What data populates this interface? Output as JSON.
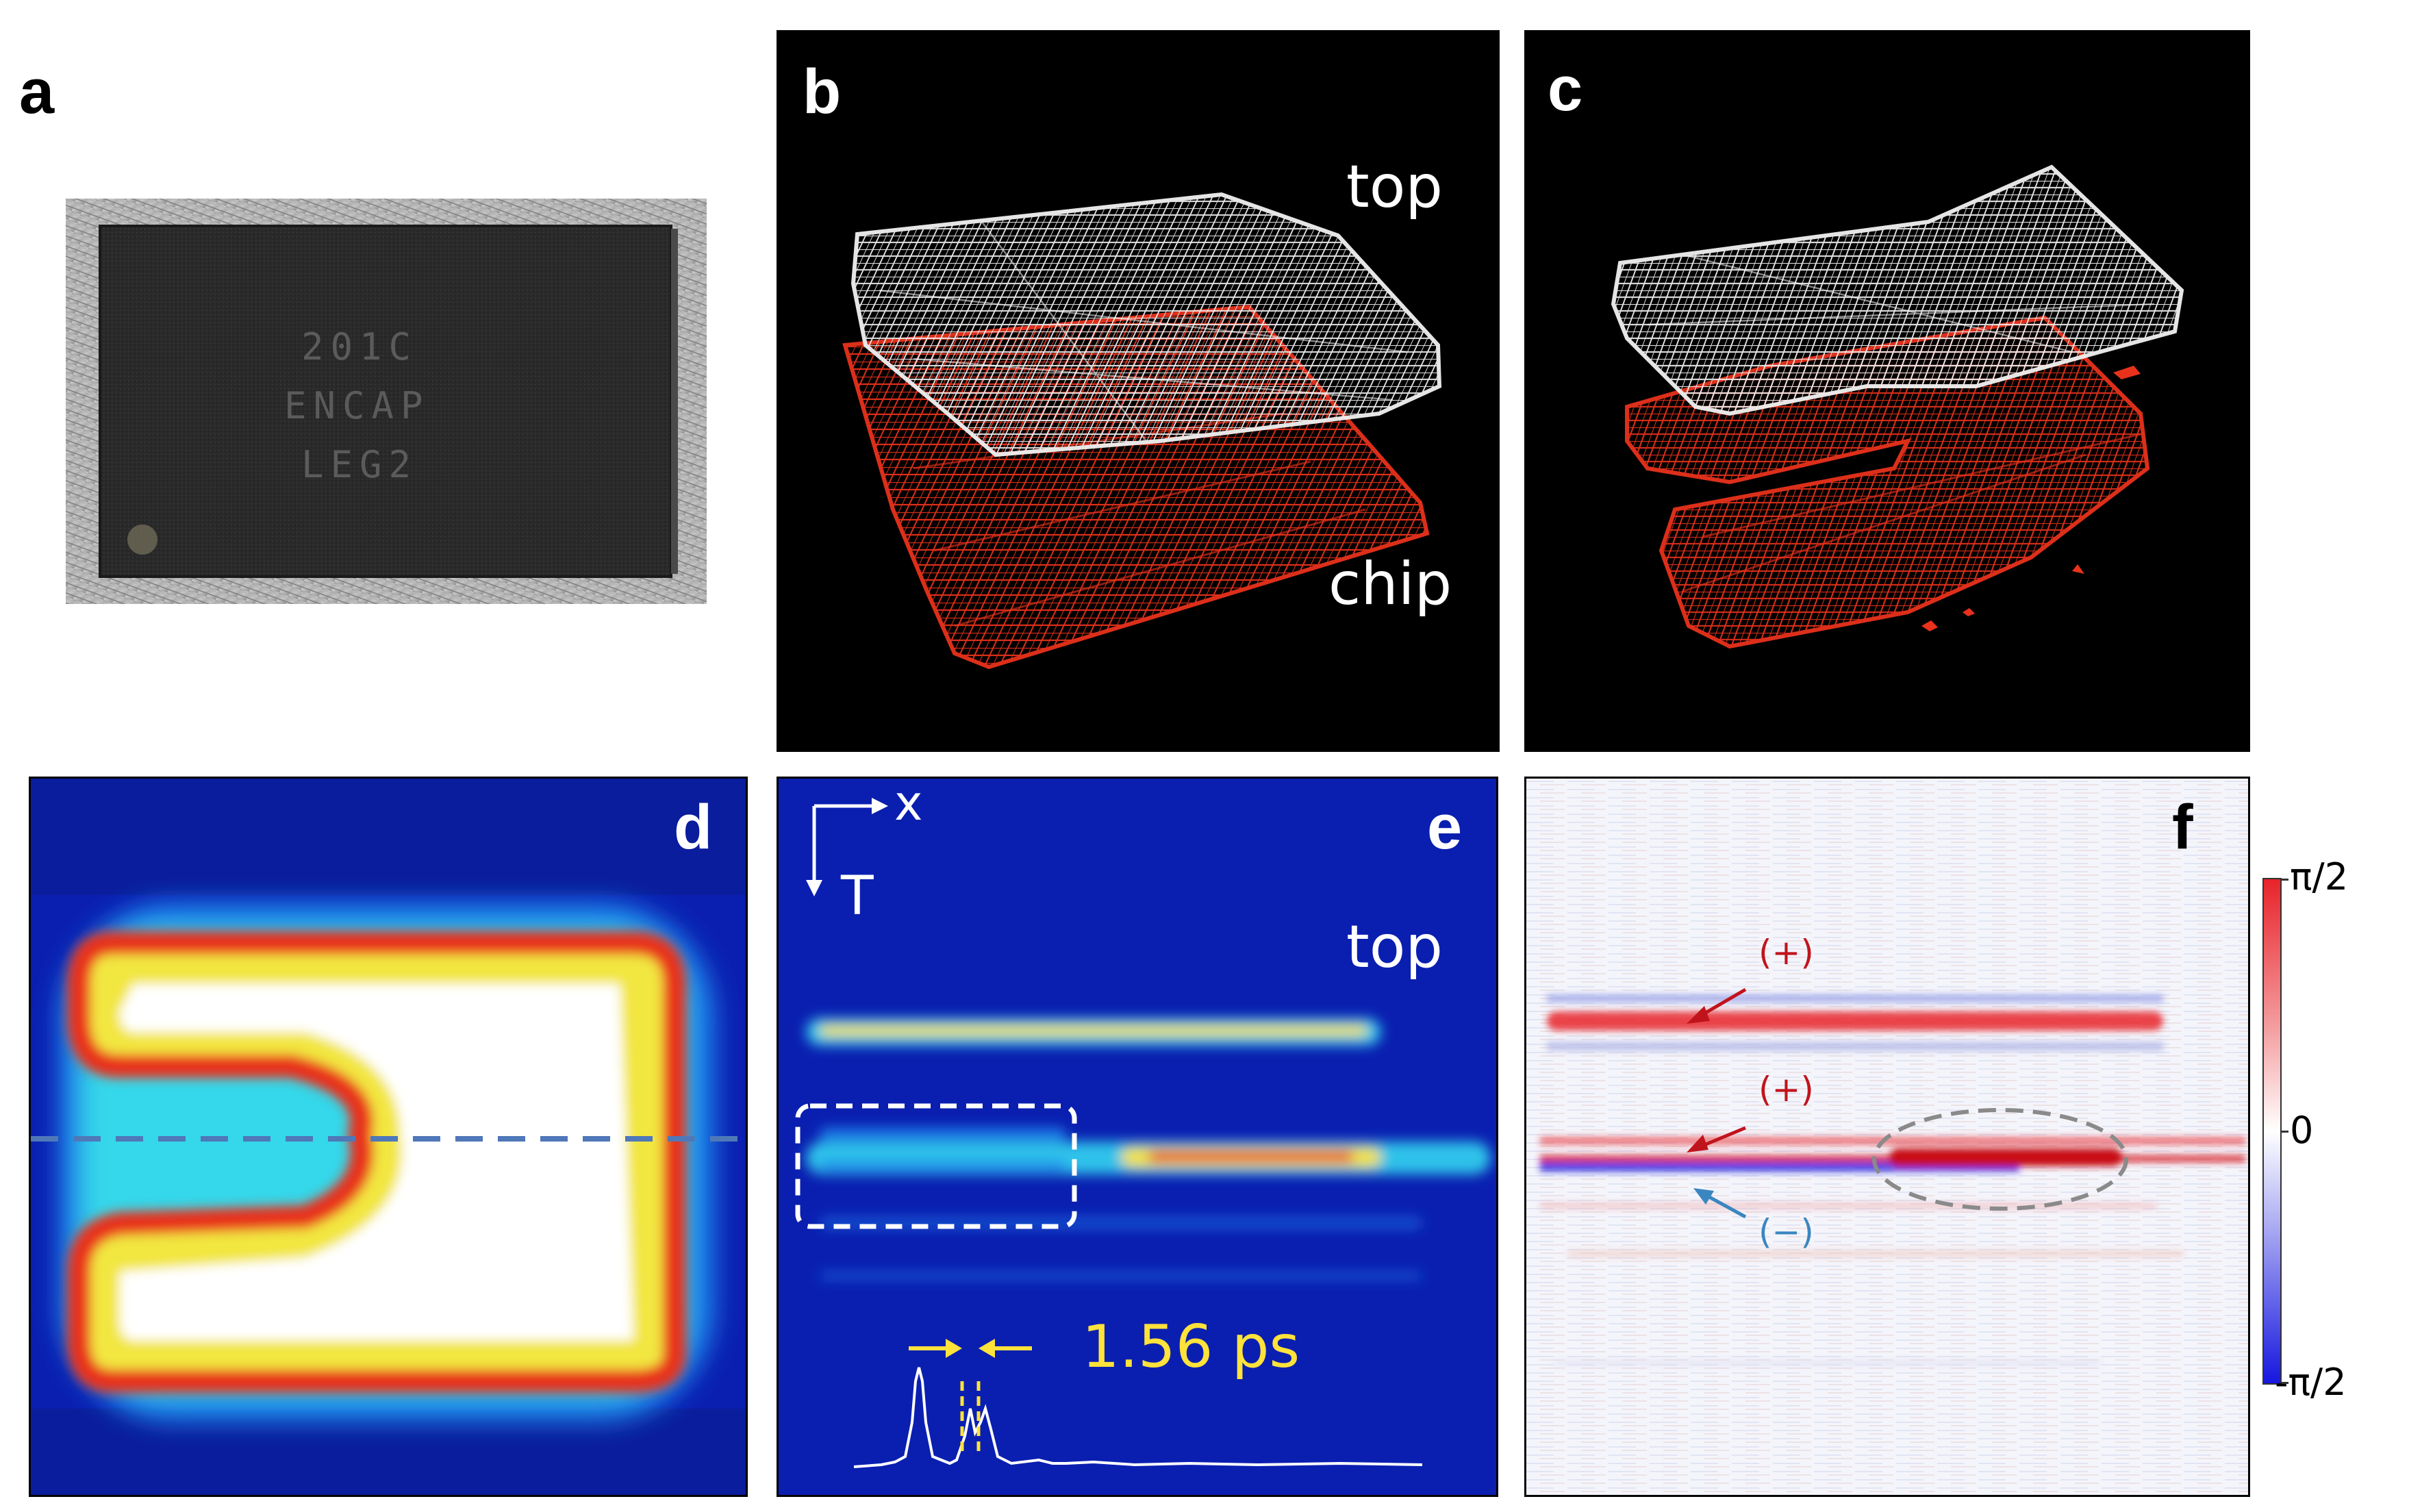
{
  "panels": {
    "a": {
      "letter": "a",
      "chip_text": [
        "201C",
        "ENCAP",
        "LEG2"
      ]
    },
    "b": {
      "letter": "b",
      "label_top": "top",
      "label_chip": "chip"
    },
    "c": {
      "letter": "c"
    },
    "d": {
      "letter": "d"
    },
    "e": {
      "letter": "e",
      "axis_x": "x",
      "axis_t": "T",
      "label_top": "top",
      "interval": "1.56 ps"
    },
    "f": {
      "letter": "f",
      "marker_plus_1": "(+)",
      "marker_plus_2": "(+)",
      "marker_minus": "(−)",
      "colorbar_ticks": [
        "π/2",
        "0",
        "-π/2"
      ]
    }
  },
  "colors": {
    "wire_top": "#f2f2f2",
    "wire_chip": "#e8321c",
    "thz_low": "#0a1fb0",
    "accent_yellow": "#ffe23a",
    "phase_pos": "#e8232a",
    "phase_neg": "#1616e0"
  }
}
